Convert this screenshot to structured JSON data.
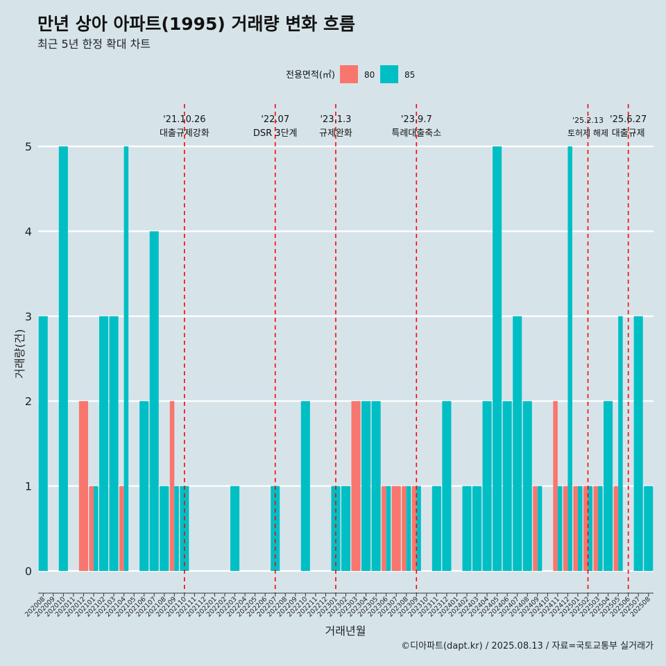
{
  "chart_data": {
    "type": "bar",
    "title": "만년 상아 아파트(1995) 거래량 변화 흐름",
    "subtitle": "최근 5년 한정 확대 차트",
    "xlabel": "거래년월",
    "ylabel": "거래량(건)",
    "caption": "©디아파트(dapt.kr) / 2025.08.13 / 자료=국토교통부 실거래가",
    "legend": {
      "title": "전용면적(㎡)",
      "position": "top"
    },
    "ylim": [
      0,
      5
    ],
    "yticks": [
      0,
      1,
      2,
      3,
      4,
      5
    ],
    "categories": [
      "202008",
      "202009",
      "202010",
      "202011",
      "202012",
      "202101",
      "202102",
      "202103",
      "202104",
      "202105",
      "202106",
      "202107",
      "202108",
      "202109",
      "202110",
      "202111",
      "202112",
      "202201",
      "202202",
      "202203",
      "202204",
      "202205",
      "202206",
      "202207",
      "202208",
      "202209",
      "202210",
      "202211",
      "202212",
      "202301",
      "202302",
      "202303",
      "202304",
      "202305",
      "202306",
      "202307",
      "202308",
      "202309",
      "202310",
      "202311",
      "202312",
      "202401",
      "202402",
      "202403",
      "202404",
      "202405",
      "202406",
      "202407",
      "202408",
      "202409",
      "202410",
      "202411",
      "202412",
      "202501",
      "202502",
      "202503",
      "202504",
      "202505",
      "202506",
      "202507",
      "202508"
    ],
    "series": [
      {
        "name": "80",
        "color": "#f8766d",
        "values": [
          0,
          0,
          0,
          0,
          2,
          1,
          0,
          0,
          1,
          0,
          0,
          0,
          0,
          2,
          0,
          0,
          0,
          0,
          0,
          0,
          0,
          0,
          0,
          0,
          0,
          0,
          0,
          0,
          0,
          0,
          0,
          2,
          0,
          0,
          1,
          1,
          1,
          1,
          0,
          0,
          0,
          0,
          0,
          0,
          0,
          0,
          0,
          0,
          0,
          1,
          0,
          2,
          1,
          1,
          1,
          1,
          0,
          1,
          0,
          0,
          0
        ]
      },
      {
        "name": "85",
        "color": "#00bfc4",
        "values": [
          3,
          0,
          5,
          0,
          0,
          1,
          3,
          3,
          5,
          0,
          2,
          4,
          1,
          1,
          1,
          0,
          0,
          0,
          0,
          1,
          0,
          0,
          0,
          1,
          0,
          0,
          2,
          0,
          0,
          1,
          1,
          0,
          2,
          2,
          1,
          0,
          1,
          1,
          0,
          1,
          2,
          0,
          1,
          1,
          2,
          5,
          2,
          3,
          2,
          1,
          0,
          1,
          5,
          1,
          1,
          1,
          2,
          3,
          0,
          3,
          1
        ]
      }
    ],
    "annotations": [
      {
        "category": "202110",
        "date": "'21.10.26",
        "label": "대출규제강화"
      },
      {
        "category": "202207",
        "date": "'22.07",
        "label": "DSR 3단계"
      },
      {
        "category": "202301",
        "date": "'23.1.3",
        "label": "규제완화"
      },
      {
        "category": "202309",
        "date": "'23.9.7",
        "label": "특례대출축소"
      },
      {
        "category": "202502",
        "date": "'25.2.13",
        "label": "토허제 해제"
      },
      {
        "category": "202506",
        "date": "'25.6.27",
        "label": "대출규제"
      }
    ]
  }
}
